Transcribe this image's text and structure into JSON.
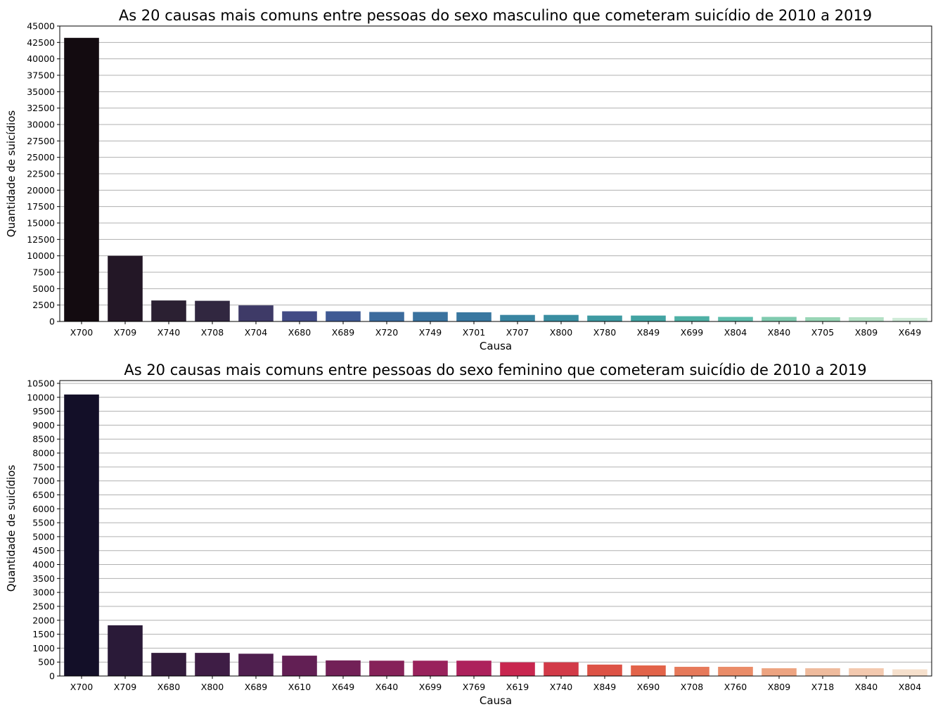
{
  "chart_data": [
    {
      "type": "bar",
      "title": "As 20 causas mais comuns entre pessoas do sexo masculino que cometeram suicídio de 2010 a 2019",
      "xlabel": "Causa",
      "ylabel": "Quantidade de suicídios",
      "categories": [
        "X700",
        "X709",
        "X740",
        "X708",
        "X704",
        "X680",
        "X689",
        "X720",
        "X749",
        "X701",
        "X707",
        "X800",
        "X780",
        "X849",
        "X699",
        "X804",
        "X840",
        "X705",
        "X809",
        "X649"
      ],
      "values": [
        43200,
        10000,
        3200,
        3150,
        2450,
        1550,
        1550,
        1450,
        1450,
        1400,
        1000,
        1000,
        900,
        900,
        800,
        700,
        700,
        650,
        650,
        550
      ],
      "ylim": [
        0,
        45000
      ],
      "yticks": [
        0,
        2500,
        5000,
        7500,
        10000,
        12500,
        15000,
        17500,
        20000,
        22500,
        25000,
        27500,
        30000,
        32500,
        35000,
        37500,
        40000,
        42500,
        45000
      ],
      "grid": "y",
      "palette": "mako",
      "colors": [
        "#130b10",
        "#231726",
        "#2b2032",
        "#312740",
        "#3e3a67",
        "#424b85",
        "#3f5a94",
        "#3c6b9d",
        "#3a729f",
        "#3977a0",
        "#3985a1",
        "#3a8ea1",
        "#3e9aa2",
        "#42a3a2",
        "#4eb0a5",
        "#5fbdac",
        "#7fcaae",
        "#98d5b5",
        "#b3e0c4",
        "#cfebd8"
      ]
    },
    {
      "type": "bar",
      "title": "As 20 causas mais comuns entre pessoas do sexo feminino que cometeram suicídio de 2010 a 2019",
      "xlabel": "Causa",
      "ylabel": "Quantidade de suicídios",
      "categories": [
        "X700",
        "X709",
        "X680",
        "X800",
        "X689",
        "X610",
        "X649",
        "X640",
        "X699",
        "X769",
        "X619",
        "X740",
        "X849",
        "X690",
        "X708",
        "X760",
        "X809",
        "X718",
        "X840",
        "X804"
      ],
      "values": [
        10100,
        1820,
        830,
        830,
        800,
        730,
        560,
        550,
        550,
        550,
        490,
        490,
        410,
        380,
        330,
        330,
        280,
        280,
        280,
        240
      ],
      "ylim": [
        0,
        10600
      ],
      "yticks": [
        0,
        500,
        1000,
        1500,
        2000,
        2500,
        3000,
        3500,
        4000,
        4500,
        5000,
        5500,
        6000,
        6500,
        7000,
        7500,
        8000,
        8500,
        9000,
        9500,
        10000,
        10500
      ],
      "grid": "y",
      "palette": "rocket",
      "colors": [
        "#130f28",
        "#2a1a38",
        "#331c3c",
        "#3e1d45",
        "#4f1f4f",
        "#621f54",
        "#722057",
        "#862259",
        "#99225c",
        "#ad215c",
        "#c8264f",
        "#d23a48",
        "#dd5245",
        "#e26349",
        "#e6795a",
        "#ea8c68",
        "#eda481",
        "#efbb9d",
        "#f3c9af",
        "#f6e0cc"
      ]
    }
  ]
}
